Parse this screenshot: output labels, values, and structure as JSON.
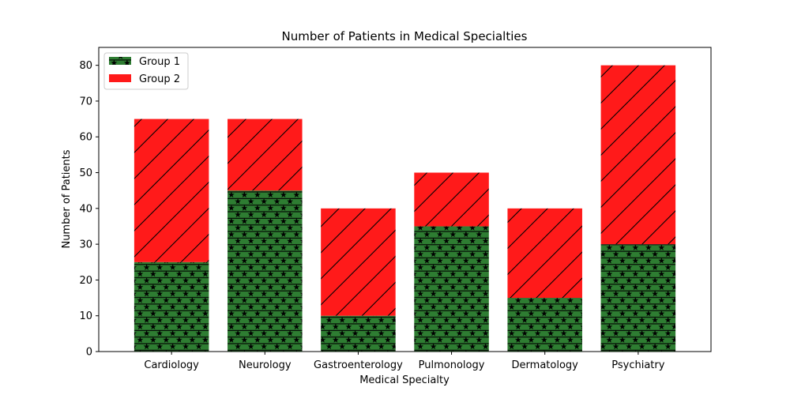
{
  "chart_data": {
    "type": "bar",
    "stacked": true,
    "title": "Number of Patients in Medical Specialties",
    "xlabel": "Medical Specialty",
    "ylabel": "Number of Patients",
    "categories": [
      "Cardiology",
      "Neurology",
      "Gastroenterology",
      "Pulmonology",
      "Dermatology",
      "Psychiatry"
    ],
    "series": [
      {
        "name": "Group 1",
        "values": [
          25,
          45,
          10,
          35,
          15,
          30
        ],
        "color": "#2e7d32",
        "hatch": "stars-and-horizontal-lines"
      },
      {
        "name": "Group 2",
        "values": [
          40,
          20,
          30,
          15,
          25,
          50
        ],
        "color": "#ff1a1a",
        "hatch": "diagonal-lines"
      }
    ],
    "ylim": [
      0,
      85
    ],
    "yticks": [
      0,
      10,
      20,
      30,
      40,
      50,
      60,
      70,
      80
    ],
    "grid": false,
    "legend": "top-left"
  }
}
